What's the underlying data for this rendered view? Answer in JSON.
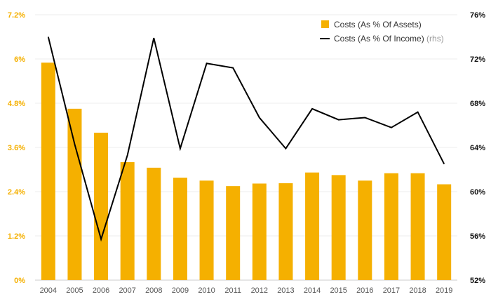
{
  "chart_data": {
    "type": "bar+line",
    "categories": [
      "2004",
      "2005",
      "2006",
      "2007",
      "2008",
      "2009",
      "2010",
      "2011",
      "2012",
      "2013",
      "2014",
      "2015",
      "2016",
      "2017",
      "2018",
      "2019"
    ],
    "series": [
      {
        "name": "Costs (As % Of Assets)",
        "type": "bar",
        "axis": "left",
        "color": "#f5b000",
        "values": [
          5.9,
          4.65,
          4.0,
          3.2,
          3.05,
          2.78,
          2.7,
          2.55,
          2.62,
          2.63,
          2.92,
          2.85,
          2.7,
          2.9,
          2.9,
          2.6
        ]
      },
      {
        "name": "Costs (As % Of Income)",
        "name_suffix": "(rhs)",
        "type": "line",
        "axis": "right",
        "color": "#000000",
        "values": [
          74.0,
          64.3,
          55.7,
          63.3,
          73.9,
          63.9,
          71.6,
          71.2,
          66.7,
          63.9,
          67.5,
          66.5,
          66.7,
          65.8,
          67.2,
          62.5
        ]
      }
    ],
    "y_left": {
      "ylim": [
        0,
        7.2
      ],
      "ticks": [
        "0%",
        "1.2%",
        "2.4%",
        "3.6%",
        "4.8%",
        "6%",
        "7.2%"
      ],
      "tick_color": "#f5b000"
    },
    "y_right": {
      "ylim": [
        52,
        76
      ],
      "ticks": [
        "52%",
        "56%",
        "60%",
        "64%",
        "68%",
        "72%",
        "76%"
      ],
      "tick_color": "#111111"
    },
    "grid": true,
    "legend_position": "top-right"
  }
}
